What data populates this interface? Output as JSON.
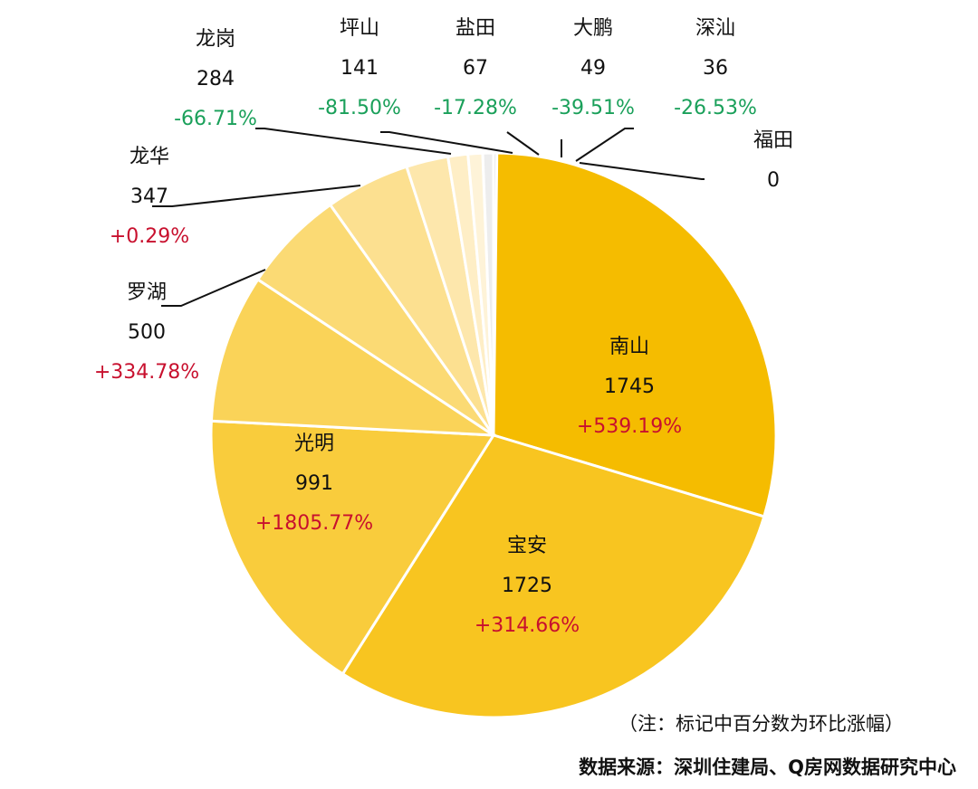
{
  "chart_data": {
    "type": "pie",
    "slices": [
      {
        "label": "南山",
        "value": 1745,
        "change": "+539.19%",
        "color": "#F5BC00"
      },
      {
        "label": "宝安",
        "value": 1725,
        "change": "+314.66%",
        "color": "#F8C520"
      },
      {
        "label": "光明",
        "value": 991,
        "change": "+1805.77%",
        "color": "#F9CC3C"
      },
      {
        "label": "罗湖",
        "value": 500,
        "change": "+334.78%",
        "color": "#FAD358"
      },
      {
        "label": "龙华",
        "value": 347,
        "change": "+0.29%",
        "color": "#FBDA74"
      },
      {
        "label": "龙岗",
        "value": 284,
        "change": "-66.71%",
        "color": "#FCE090"
      },
      {
        "label": "坪山",
        "value": 141,
        "change": "-81.50%",
        "color": "#FDE7AC"
      },
      {
        "label": "盐田",
        "value": 67,
        "change": "-17.28%",
        "color": "#FEEEC6"
      },
      {
        "label": "大鹏",
        "value": 49,
        "change": "-39.51%",
        "color": "#FEF3D8"
      },
      {
        "label": "深汕",
        "value": 36,
        "change": "-26.53%",
        "color": "#EDEDED"
      },
      {
        "label": "福田",
        "value": 0,
        "change": "",
        "color": "#DDDDDD"
      }
    ],
    "colors": {
      "increase": "#c8102e",
      "decrease": "#1aa05a"
    }
  },
  "note": "（注：标记中百分数为环比涨幅）",
  "source": "数据来源：深圳住建局、Q房网数据研究中心"
}
